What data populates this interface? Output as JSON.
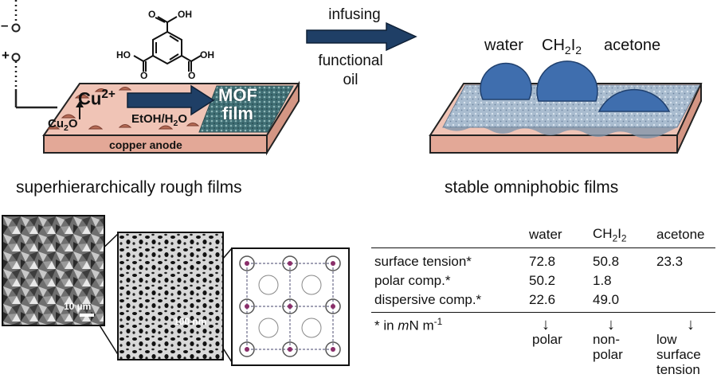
{
  "left_panel": {
    "sign_minus": "–",
    "sign_plus": "+",
    "linker_groups": [
      "O",
      "OH",
      "HO",
      "O",
      "O",
      "OH"
    ],
    "cu_ion": "Cu",
    "cu_charge": "2+",
    "cu2o_main": "Cu",
    "cu2o_sub": "2",
    "cu2o_end": "O",
    "solvent_text": "EtOH/H",
    "solvent_sub": "2",
    "solvent_end": "O",
    "mof_line1": "MOF",
    "mof_line2": "film",
    "substrate_label": "copper anode",
    "caption": "superhierarchically rough films"
  },
  "process_arrow": {
    "line1": "infusing",
    "line2": "functional",
    "line3": "oil"
  },
  "right_panel": {
    "droplet1": "water",
    "droplet2_main": "CH",
    "droplet2_sub1": "2",
    "droplet2_mid": "I",
    "droplet2_sub2": "2",
    "droplet3": "acetone",
    "caption": "stable omniphobic films"
  },
  "micrographs": {
    "scale1": "10 µm",
    "scale2": "100 nm"
  },
  "table": {
    "col_water": "water",
    "col_ch2i2_main": "CH",
    "col_ch2i2_sub1": "2",
    "col_ch2i2_mid": "I",
    "col_ch2i2_sub2": "2",
    "col_acetone": "acetone",
    "rows": [
      {
        "label": "surface tension*",
        "water": "72.8",
        "ch2i2": "50.8",
        "acetone": "23.3"
      },
      {
        "label": "polar comp.*",
        "water": "50.2",
        "ch2i2": "1.8",
        "acetone": ""
      },
      {
        "label": "dispersive comp.*",
        "water": "22.6",
        "ch2i2": "49.0",
        "acetone": ""
      }
    ],
    "footnote_pre": "* in ",
    "footnote_m": "m",
    "footnote_post": "N m",
    "footnote_sup": "-1",
    "arrow_glyph": "↓",
    "water_note_1": "polar",
    "ch2i2_note_1": "non-",
    "ch2i2_note_2": "polar",
    "acetone_note_1": "low surface",
    "acetone_note_2": "tension"
  },
  "colors": {
    "anode": "#f0c4b6",
    "anode_side": "#e3a897",
    "arrow_fill": "#1f3f66",
    "mof_film": "#3f6e74",
    "droplet": "#3f6eae",
    "droplet_edge": "#20406e",
    "oil_layer": "#a8bcd2"
  }
}
